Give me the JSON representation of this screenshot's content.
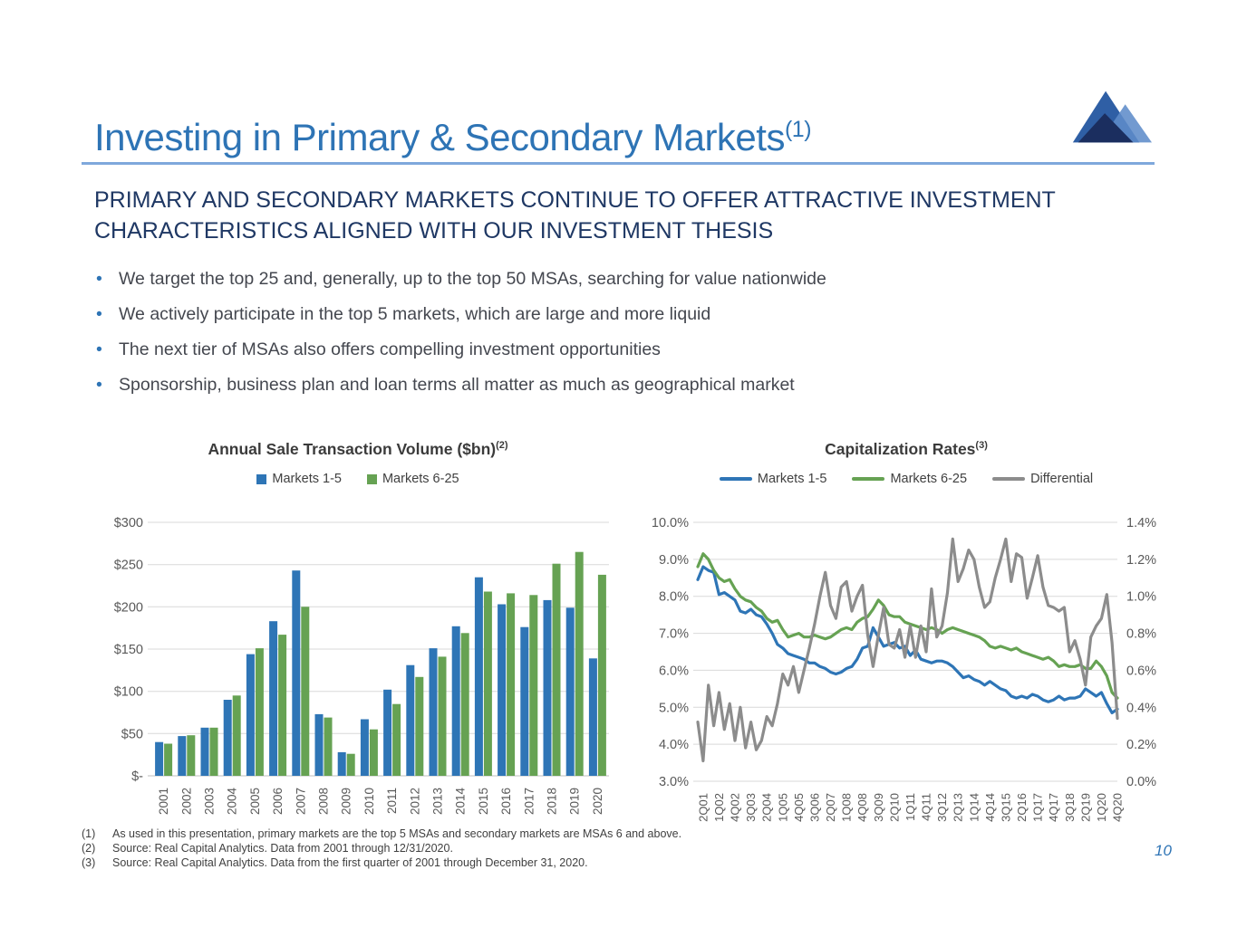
{
  "slide": {
    "title": "Investing in Primary & Secondary Markets",
    "title_sup": "(1)",
    "heading": "PRIMARY AND SECONDARY MARKETS CONTINUE TO OFFER ATTRACTIVE INVESTMENT CHARACTERISTICS ALIGNED WITH OUR INVESTMENT THESIS",
    "bullets": [
      "We target the top 25 and, generally, up to the top 50 MSAs, searching for value nationwide",
      "We actively participate in the top 5 markets, which are large and more liquid",
      "The next tier of MSAs also offers compelling investment opportunities",
      "Sponsorship, business plan and loan terms all matter as much as geographical market"
    ],
    "footnotes": [
      {
        "num": "(1)",
        "text": "As used in this presentation, primary markets are the top 5 MSAs and secondary markets are MSAs 6 and above."
      },
      {
        "num": "(2)",
        "text": "Source: Real Capital Analytics. Data from 2001 through 12/31/2020."
      },
      {
        "num": "(3)",
        "text": "Source: Real Capital Analytics. Data from the first quarter of 2001 through December 31, 2020."
      }
    ],
    "page_number": "10"
  },
  "colors": {
    "title_blue": "#2E74B5",
    "divider_blue": "#7FA8DC",
    "heading_navy": "#1F3864",
    "body_text": "#44474F",
    "axis_text": "#595959",
    "gridline": "#D9D9D9",
    "logo_blue": "#2F5FA5",
    "logo_light_blue": "#5E8CC9",
    "logo_dark_navy": "#1B2E5F"
  },
  "chart_data": [
    {
      "type": "bar",
      "title": "Annual Sale Transaction Volume ($bn)",
      "title_sup": "(2)",
      "legend_position": "top",
      "grid": true,
      "ylim": [
        0,
        300
      ],
      "y_ticks": [
        {
          "value": 300,
          "label": "$300"
        },
        {
          "value": 250,
          "label": "$250"
        },
        {
          "value": 200,
          "label": "$200"
        },
        {
          "value": 150,
          "label": "$150"
        },
        {
          "value": 100,
          "label": "$100"
        },
        {
          "value": 50,
          "label": "$50"
        },
        {
          "value": 0,
          "label": "$-"
        }
      ],
      "categories": [
        "2001",
        "2002",
        "2003",
        "2004",
        "2005",
        "2006",
        "2007",
        "2008",
        "2009",
        "2010",
        "2011",
        "2012",
        "2013",
        "2014",
        "2015",
        "2016",
        "2017",
        "2018",
        "2019",
        "2020"
      ],
      "series": [
        {
          "name": "Markets 1-5",
          "color": "#2E75B6",
          "values": [
            40,
            47,
            57,
            90,
            144,
            183,
            243,
            73,
            28,
            67,
            102,
            131,
            151,
            177,
            235,
            203,
            176,
            208,
            199,
            139
          ]
        },
        {
          "name": "Markets 6-25",
          "color": "#66A253",
          "values": [
            38,
            48,
            57,
            95,
            151,
            167,
            200,
            69,
            26,
            55,
            85,
            117,
            141,
            169,
            218,
            216,
            214,
            251,
            265,
            238
          ]
        }
      ]
    },
    {
      "type": "line",
      "title": "Capitalization Rates",
      "title_sup": "(3)",
      "legend_position": "top",
      "grid": true,
      "n_points": 80,
      "x_unit": "quarters from 1Q01 to 4Q20",
      "x_labels": [
        "2Q01",
        "1Q02",
        "4Q02",
        "3Q03",
        "2Q04",
        "1Q05",
        "4Q05",
        "3Q06",
        "2Q07",
        "1Q08",
        "4Q08",
        "3Q09",
        "2Q10",
        "1Q11",
        "4Q11",
        "3Q12",
        "2Q13",
        "1Q14",
        "4Q14",
        "3Q15",
        "2Q16",
        "1Q17",
        "4Q17",
        "3Q18",
        "2Q19",
        "1Q20",
        "4Q20"
      ],
      "x_label_start_index": 1,
      "x_label_step": 3,
      "left_axis": {
        "min": 3,
        "max": 10,
        "ticks": [
          {
            "value": 10,
            "label": "10.0%"
          },
          {
            "value": 9,
            "label": "9.0%"
          },
          {
            "value": 8,
            "label": "8.0%"
          },
          {
            "value": 7,
            "label": "7.0%"
          },
          {
            "value": 6,
            "label": "6.0%"
          },
          {
            "value": 5,
            "label": "5.0%"
          },
          {
            "value": 4,
            "label": "4.0%"
          },
          {
            "value": 3,
            "label": "3.0%"
          }
        ]
      },
      "right_axis": {
        "min": 0,
        "max": 1.4,
        "ticks": [
          {
            "value": 1.4,
            "label": "1.4%"
          },
          {
            "value": 1.2,
            "label": "1.2%"
          },
          {
            "value": 1.0,
            "label": "1.0%"
          },
          {
            "value": 0.8,
            "label": "0.8%"
          },
          {
            "value": 0.6,
            "label": "0.6%"
          },
          {
            "value": 0.4,
            "label": "0.4%"
          },
          {
            "value": 0.2,
            "label": "0.2%"
          },
          {
            "value": 0.0,
            "label": "0.0%"
          }
        ]
      },
      "series": [
        {
          "name": "Markets 1-5",
          "color": "#2E75B6",
          "axis": "left",
          "values": [
            8.45,
            8.8,
            8.7,
            8.65,
            8.05,
            8.1,
            8.0,
            7.9,
            7.6,
            7.55,
            7.65,
            7.5,
            7.45,
            7.25,
            7.0,
            6.7,
            6.6,
            6.45,
            6.4,
            6.35,
            6.3,
            6.2,
            6.2,
            6.1,
            6.05,
            5.95,
            5.9,
            5.95,
            6.05,
            6.1,
            6.3,
            6.6,
            6.65,
            7.15,
            6.9,
            6.65,
            6.7,
            6.75,
            6.6,
            6.65,
            6.4,
            6.55,
            6.3,
            6.25,
            6.2,
            6.25,
            6.25,
            6.2,
            6.1,
            5.95,
            5.8,
            5.85,
            5.75,
            5.7,
            5.6,
            5.7,
            5.6,
            5.5,
            5.45,
            5.3,
            5.25,
            5.3,
            5.25,
            5.35,
            5.3,
            5.2,
            5.15,
            5.2,
            5.3,
            5.2,
            5.25,
            5.25,
            5.3,
            5.5,
            5.4,
            5.3,
            5.4,
            5.1,
            4.85,
            4.95
          ]
        },
        {
          "name": "Markets 6-25",
          "color": "#66A253",
          "axis": "left",
          "values": [
            8.8,
            9.15,
            9.0,
            8.7,
            8.5,
            8.4,
            8.45,
            8.2,
            8.0,
            7.9,
            7.85,
            7.7,
            7.6,
            7.4,
            7.3,
            7.35,
            7.1,
            6.9,
            6.95,
            7.0,
            6.9,
            6.9,
            6.95,
            6.9,
            6.85,
            6.9,
            7.0,
            7.1,
            7.15,
            7.1,
            7.3,
            7.4,
            7.45,
            7.65,
            7.9,
            7.75,
            7.5,
            7.45,
            7.45,
            7.3,
            7.25,
            7.2,
            7.15,
            7.1,
            7.15,
            7.1,
            7.0,
            7.1,
            7.15,
            7.1,
            7.05,
            7.0,
            6.95,
            6.9,
            6.8,
            6.65,
            6.6,
            6.65,
            6.6,
            6.55,
            6.6,
            6.5,
            6.45,
            6.4,
            6.35,
            6.3,
            6.35,
            6.25,
            6.1,
            6.15,
            6.1,
            6.1,
            6.15,
            6.05,
            6.05,
            6.25,
            6.1,
            5.85,
            5.4,
            5.25
          ]
        },
        {
          "name": "Differential",
          "color": "#8C8C8C",
          "axis": "right",
          "values": [
            0.32,
            0.11,
            0.52,
            0.3,
            0.48,
            0.28,
            0.42,
            0.22,
            0.4,
            0.18,
            0.32,
            0.17,
            0.22,
            0.35,
            0.3,
            0.42,
            0.58,
            0.52,
            0.62,
            0.48,
            0.6,
            0.72,
            0.85,
            1.0,
            1.13,
            0.95,
            0.88,
            1.05,
            1.08,
            0.92,
            1.0,
            1.06,
            0.79,
            0.62,
            0.79,
            0.94,
            0.74,
            0.72,
            0.82,
            0.67,
            0.84,
            0.67,
            0.84,
            0.7,
            1.04,
            0.78,
            0.84,
            1.02,
            1.31,
            1.08,
            1.15,
            1.25,
            1.2,
            1.05,
            0.94,
            0.97,
            1.1,
            1.2,
            1.31,
            1.08,
            1.23,
            1.21,
            0.99,
            1.1,
            1.22,
            1.05,
            0.95,
            0.94,
            0.92,
            0.94,
            0.7,
            0.76,
            0.66,
            0.52,
            0.78,
            0.84,
            0.88,
            1.01,
            0.75,
            0.34
          ]
        }
      ]
    }
  ]
}
